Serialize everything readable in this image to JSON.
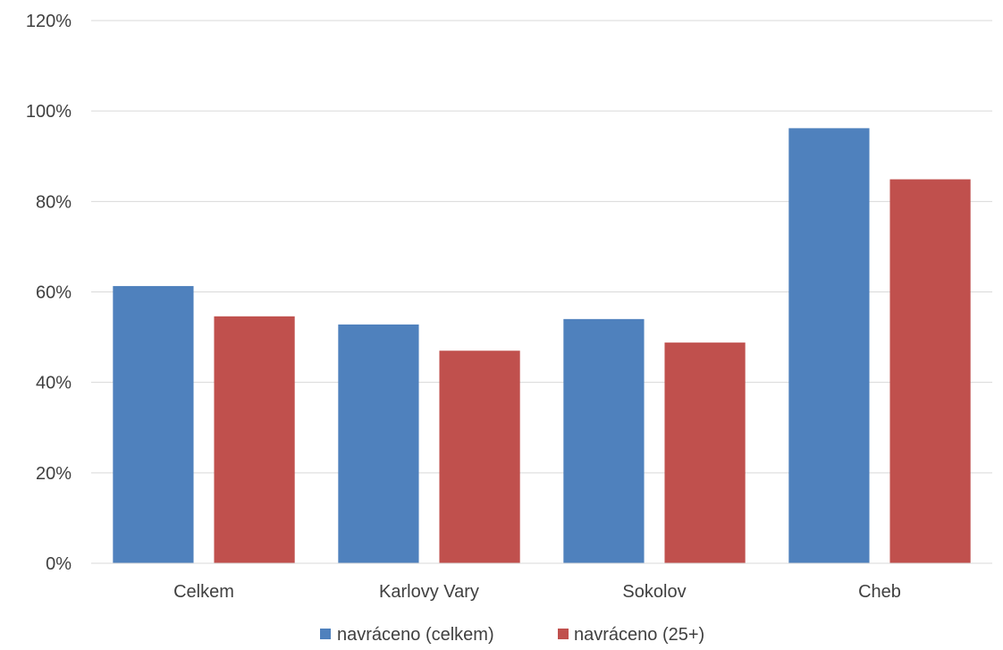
{
  "chart_data": {
    "type": "bar",
    "title": "",
    "xlabel": "",
    "ylabel": "",
    "categories": [
      "Celkem",
      "Karlovy Vary",
      "Sokolov",
      "Cheb"
    ],
    "series": [
      {
        "name": "navráceno (celkem)",
        "color": "#4F81BD",
        "values": [
          61.3,
          52.8,
          54.0,
          96.2
        ]
      },
      {
        "name": "navráceno (25+)",
        "color": "#C0504D",
        "values": [
          54.6,
          47.0,
          48.8,
          84.9
        ]
      }
    ],
    "ylim": [
      0,
      120
    ],
    "yticks": [
      0,
      20,
      40,
      60,
      80,
      100,
      120
    ],
    "ytick_labels": [
      "0%",
      "20%",
      "40%",
      "60%",
      "80%",
      "100%",
      "120%"
    ],
    "grid": true,
    "legend_position": "bottom"
  }
}
